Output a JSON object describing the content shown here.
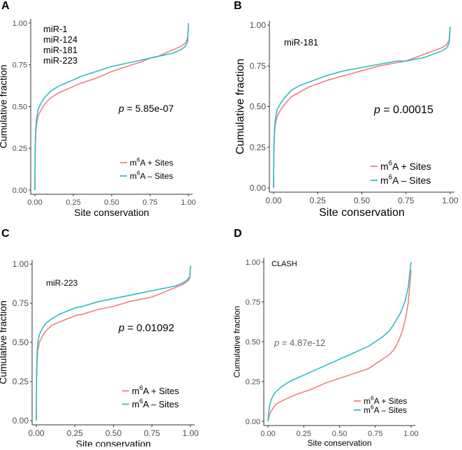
{
  "chart_data": [
    {
      "panel": "A",
      "type": "line",
      "title": "",
      "xlabel": "Site conservation",
      "ylabel": "Cumulative fraction",
      "xlim": [
        0,
        1
      ],
      "ylim": [
        0,
        1
      ],
      "xticks": [
        "0.00",
        "0.25",
        "0.50",
        "0.75",
        "1.00"
      ],
      "yticks": [
        "0.00",
        "0.25",
        "0.50",
        "0.75",
        "1.00"
      ],
      "annotation_lines": [
        "miR-1",
        "miR-124",
        "miR-181",
        "miR-223"
      ],
      "p_label": "p",
      "p_value": " = 5.85e-07",
      "legend_position": "bottom-right",
      "series": [
        {
          "name": "m6A + Sites",
          "legend_prefix": "m",
          "legend_sup": "6",
          "legend_suffix": "A + Sites",
          "color": "#F08080",
          "x": [
            0,
            0.002,
            0.005,
            0.01,
            0.02,
            0.04,
            0.06,
            0.1,
            0.15,
            0.2,
            0.25,
            0.3,
            0.4,
            0.5,
            0.6,
            0.7,
            0.75,
            0.8,
            0.85,
            0.9,
            0.95,
            0.98,
            0.995,
            1.0
          ],
          "y": [
            0.0,
            0.22,
            0.33,
            0.39,
            0.44,
            0.48,
            0.51,
            0.55,
            0.58,
            0.6,
            0.62,
            0.64,
            0.67,
            0.71,
            0.74,
            0.77,
            0.79,
            0.8,
            0.82,
            0.84,
            0.86,
            0.88,
            0.91,
            0.97
          ]
        },
        {
          "name": "m6A - Sites",
          "legend_prefix": "m",
          "legend_sup": "6",
          "legend_suffix": "A – Sites",
          "color": "#2DBDC6",
          "x": [
            0,
            0.002,
            0.005,
            0.01,
            0.02,
            0.04,
            0.06,
            0.1,
            0.15,
            0.2,
            0.25,
            0.3,
            0.4,
            0.5,
            0.6,
            0.7,
            0.75,
            0.8,
            0.85,
            0.9,
            0.95,
            0.98,
            0.995,
            1.0
          ],
          "y": [
            0.0,
            0.25,
            0.36,
            0.42,
            0.48,
            0.52,
            0.55,
            0.59,
            0.62,
            0.64,
            0.66,
            0.68,
            0.71,
            0.74,
            0.76,
            0.78,
            0.79,
            0.8,
            0.81,
            0.82,
            0.84,
            0.86,
            0.89,
            1.0
          ]
        }
      ]
    },
    {
      "panel": "B",
      "type": "line",
      "title": "",
      "xlabel": "Site conservation",
      "ylabel": "Cumulative fraction",
      "xlim": [
        0,
        1
      ],
      "ylim": [
        0,
        1
      ],
      "xticks": [
        "0.00",
        "0.25",
        "0.50",
        "0.75",
        "1.00"
      ],
      "yticks": [
        "0.00",
        "0.25",
        "0.50",
        "0.75",
        "1.00"
      ],
      "annotation_lines": [
        "miR-181"
      ],
      "p_label": "p",
      "p_value": " = 0.00015",
      "legend_position": "bottom-right",
      "series": [
        {
          "name": "m6A + Sites",
          "legend_prefix": "m",
          "legend_sup": "6",
          "legend_suffix": "A + Sites",
          "color": "#F08080",
          "x": [
            0,
            0.002,
            0.005,
            0.01,
            0.02,
            0.04,
            0.06,
            0.1,
            0.15,
            0.2,
            0.25,
            0.3,
            0.4,
            0.5,
            0.6,
            0.7,
            0.75,
            0.8,
            0.85,
            0.9,
            0.95,
            0.98,
            0.995,
            1.0
          ],
          "y": [
            0.0,
            0.22,
            0.33,
            0.39,
            0.44,
            0.48,
            0.51,
            0.56,
            0.59,
            0.62,
            0.64,
            0.66,
            0.69,
            0.72,
            0.75,
            0.77,
            0.78,
            0.8,
            0.82,
            0.84,
            0.86,
            0.88,
            0.91,
            0.98
          ]
        },
        {
          "name": "m6A - Sites",
          "legend_prefix": "m",
          "legend_sup": "6",
          "legend_suffix": "A – Sites",
          "color": "#2DBDC6",
          "x": [
            0,
            0.002,
            0.005,
            0.01,
            0.02,
            0.04,
            0.06,
            0.1,
            0.15,
            0.2,
            0.25,
            0.3,
            0.4,
            0.5,
            0.6,
            0.7,
            0.75,
            0.8,
            0.85,
            0.9,
            0.95,
            0.98,
            0.995,
            1.0
          ],
          "y": [
            0.0,
            0.25,
            0.36,
            0.42,
            0.48,
            0.52,
            0.55,
            0.6,
            0.63,
            0.65,
            0.67,
            0.69,
            0.72,
            0.74,
            0.76,
            0.78,
            0.78,
            0.79,
            0.8,
            0.82,
            0.84,
            0.86,
            0.89,
            0.99
          ]
        }
      ]
    },
    {
      "panel": "C",
      "type": "line",
      "title": "",
      "xlabel": "Site conservation",
      "ylabel": "Cumulative fraction",
      "xlim": [
        0,
        1
      ],
      "ylim": [
        0,
        1
      ],
      "xticks": [
        "0.00",
        "0.25",
        "0.50",
        "0.75",
        "1.00"
      ],
      "yticks": [
        "0.00",
        "0.25",
        "0.50",
        "0.75",
        "1.00"
      ],
      "annotation_lines": [
        "miR-223"
      ],
      "p_label": "p",
      "p_value": " = 0.01092",
      "legend_position": "bottom-right",
      "series": [
        {
          "name": "m6A + Sites",
          "legend_prefix": "m",
          "legend_sup": "6",
          "legend_suffix": "A + Sites",
          "color": "#F08080",
          "x": [
            0,
            0.002,
            0.005,
            0.01,
            0.02,
            0.04,
            0.06,
            0.1,
            0.15,
            0.2,
            0.25,
            0.3,
            0.4,
            0.5,
            0.6,
            0.7,
            0.75,
            0.8,
            0.85,
            0.9,
            0.95,
            0.98,
            0.995,
            1.0
          ],
          "y": [
            0.0,
            0.26,
            0.38,
            0.45,
            0.5,
            0.54,
            0.57,
            0.61,
            0.63,
            0.65,
            0.67,
            0.68,
            0.71,
            0.73,
            0.76,
            0.78,
            0.79,
            0.81,
            0.83,
            0.85,
            0.87,
            0.89,
            0.91,
            0.99
          ]
        },
        {
          "name": "m6A - Sites",
          "legend_prefix": "m",
          "legend_sup": "6",
          "legend_suffix": "A – Sites",
          "color": "#2DBDC6",
          "x": [
            0,
            0.002,
            0.005,
            0.01,
            0.02,
            0.04,
            0.06,
            0.1,
            0.15,
            0.2,
            0.25,
            0.3,
            0.4,
            0.5,
            0.6,
            0.7,
            0.75,
            0.8,
            0.85,
            0.9,
            0.95,
            0.98,
            0.995,
            1.0
          ],
          "y": [
            0.0,
            0.3,
            0.42,
            0.5,
            0.55,
            0.59,
            0.62,
            0.65,
            0.68,
            0.7,
            0.72,
            0.73,
            0.76,
            0.78,
            0.8,
            0.82,
            0.83,
            0.84,
            0.85,
            0.86,
            0.88,
            0.9,
            0.92,
            0.99
          ]
        }
      ]
    },
    {
      "panel": "D",
      "type": "line",
      "title": "",
      "xlabel": "Site conservation",
      "ylabel": "Cumulative fraction",
      "xlim": [
        0,
        1
      ],
      "ylim": [
        0,
        1
      ],
      "xticks": [
        "0.00",
        "0.25",
        "0.50",
        "0.75",
        "1.00"
      ],
      "yticks": [
        "0.00",
        "0.25",
        "0.50",
        "0.75",
        "1.00"
      ],
      "annotation_lines": [
        "CLASH"
      ],
      "p_label": "p",
      "p_value": " = 4.87e-12",
      "legend_position": "bottom-right",
      "series": [
        {
          "name": "m6A + Sites",
          "legend_prefix": "m",
          "legend_sup": "6",
          "legend_suffix": "A + Sites",
          "color": "#F08080",
          "x": [
            0,
            0.005,
            0.01,
            0.02,
            0.04,
            0.06,
            0.1,
            0.15,
            0.2,
            0.3,
            0.4,
            0.5,
            0.6,
            0.7,
            0.75,
            0.8,
            0.85,
            0.88,
            0.9,
            0.92,
            0.94,
            0.96,
            0.98,
            1.0
          ],
          "y": [
            0.0,
            0.02,
            0.04,
            0.06,
            0.09,
            0.11,
            0.13,
            0.15,
            0.17,
            0.2,
            0.24,
            0.27,
            0.3,
            0.33,
            0.36,
            0.39,
            0.42,
            0.45,
            0.48,
            0.52,
            0.57,
            0.64,
            0.74,
            0.95
          ]
        },
        {
          "name": "m6A - Sites",
          "legend_prefix": "m",
          "legend_sup": "6",
          "legend_suffix": "A – Sites",
          "color": "#2DBDC6",
          "x": [
            0,
            0.005,
            0.01,
            0.02,
            0.04,
            0.06,
            0.1,
            0.15,
            0.2,
            0.3,
            0.4,
            0.5,
            0.6,
            0.7,
            0.75,
            0.8,
            0.85,
            0.88,
            0.9,
            0.92,
            0.94,
            0.96,
            0.98,
            1.0
          ],
          "y": [
            0.0,
            0.05,
            0.09,
            0.13,
            0.17,
            0.19,
            0.22,
            0.25,
            0.27,
            0.31,
            0.35,
            0.39,
            0.43,
            0.47,
            0.5,
            0.53,
            0.57,
            0.61,
            0.64,
            0.67,
            0.71,
            0.76,
            0.84,
            1.0
          ]
        }
      ]
    }
  ]
}
